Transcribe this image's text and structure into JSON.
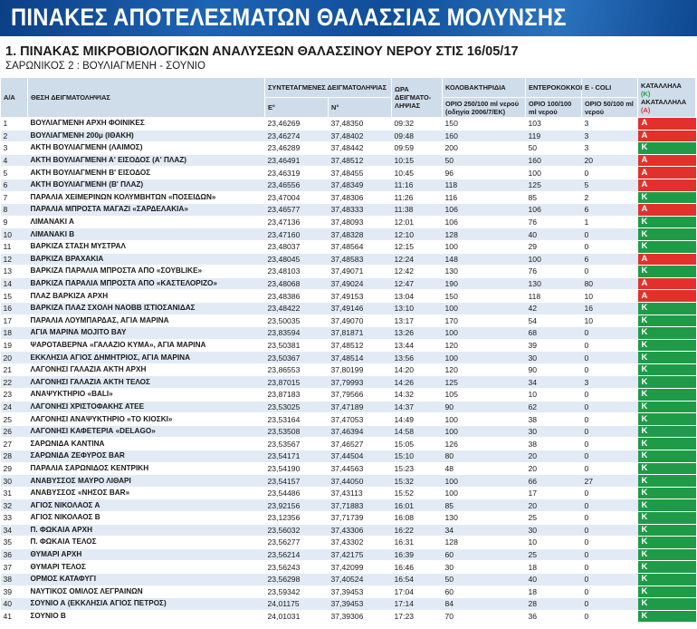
{
  "banner": "ΠΙΝΑΚΕΣ ΑΠΟΤΕΛΕΣΜΑΤΩΝ ΘΑΛΑΣΣΙΑΣ ΜΟΛΥΝΣΗΣ",
  "title": "1. ΠΙΝΑΚΑΣ ΜΙΚΡΟΒΙΟΛΟΓΙΚΩΝ ΑΝΑΛΥΣΕΩΝ ΘΑΛΑΣΣΙΝΟΥ ΝΕΡΟΥ ΣΤΙΣ 16/05/17",
  "subtitle": "ΣΑΡΩΝΙΚΟΣ 2 : ΒΟΥΛΙΑΓΜΕΝΗ - ΣΟΥΝΙΟ",
  "table": {
    "headers": {
      "aa": "Α/Α",
      "location": "ΘΕΣΗ ΔΕΙΓΜΑΤΟΛΗΨΙΑΣ",
      "coords": "ΣΥΝΤΕΤΑΓΜΕΝΕΣ ΔΕΙΓΜΑΤΟΛΗΨΙΑΣ",
      "e": "Ε°",
      "n": "Ν°",
      "time": "ΩΡΑ ΔΕΙΓΜΑΤΟ-ΛΗΨΙΑΣ",
      "coliform": "ΚΟΛΟΒΑΚΤΗΡΙΔΙΑ",
      "coliform_limit": "ΟΡΙΟ 250/100 ml νερού (οδηγία 2006/7/ΕΚ)",
      "entero": "ΕΝΤΕΡΟΚΟΚΚΟΙ",
      "entero_limit": "ΟΡΙΟ 100/100 ml νερού",
      "ecoli": "E - COLI",
      "ecoli_limit": "ΟΡΙΟ 50/100 ml νερού",
      "suitable": "ΚΑΤΑΛΛΗΛΑ",
      "suitable_code": "(Κ)",
      "unsuitable": "ΑΚΑΤΑΛΛΗΛΑ",
      "unsuitable_code": "(Α)"
    },
    "rows": [
      [
        1,
        "ΒΟΥΛΙΑΓΜΕΝΗ ΑΡΧΗ ΦΟΙΝΙΚΕΣ",
        "23,46269",
        "37,48350",
        "09:32",
        150,
        103,
        3,
        "Α"
      ],
      [
        2,
        "ΒΟΥΛΙΑΓΜΕΝΗ 200μ (ΙΘΑΚΗ)",
        "23,46274",
        "37,48402",
        "09:48",
        160,
        119,
        3,
        "Α"
      ],
      [
        3,
        "ΑΚΤΗ ΒΟΥΛΙΑΓΜΕΝΗ (ΛΑΙΜΟΣ)",
        "23,46289",
        "37,48442",
        "09:59",
        200,
        50,
        3,
        "Κ"
      ],
      [
        4,
        "ΑΚΤΗ ΒΟΥΛΙΑΓΜΕΝΗ Α' ΕΙΣΟΔΟΣ (Α' ΠΛΑΖ)",
        "23,46491",
        "37,48512",
        "10:15",
        50,
        160,
        20,
        "Α"
      ],
      [
        5,
        "ΑΚΤΗ ΒΟΥΛΙΑΓΜΕΝΗ Β' ΕΙΣΟΔΟΣ",
        "23,46319",
        "37,48455",
        "10:45",
        96,
        100,
        0,
        "Α"
      ],
      [
        6,
        "ΑΚΤΗ ΒΟΥΛΙΑΓΜΕΝΗ (Β' ΠΛΑΖ)",
        "23,46556",
        "37,48349",
        "11:16",
        118,
        125,
        5,
        "Α"
      ],
      [
        7,
        "ΠΑΡΑΛΙΑ ΧΕΙΜΕΡΙΝΩΝ ΚΟΛΥΜΒΗΤΩΝ «ΠΟΣΕΙΔΩΝ»",
        "23,47004",
        "37,48306",
        "11:26",
        116,
        85,
        2,
        "Κ"
      ],
      [
        8,
        "ΠΑΡΑΛΙΑ ΜΠΡΟΣΤΑ ΜΑΓΑΖΙ «ΣΑΡΔΕΛΑΚΙΑ»",
        "23,46577",
        "37,48333",
        "11:38",
        106,
        106,
        6,
        "Α"
      ],
      [
        9,
        "ΛΙΜΑΝΑΚΙ Α",
        "23,47136",
        "37,48093",
        "12:01",
        106,
        76,
        1,
        "Κ"
      ],
      [
        10,
        "ΛΙΜΑΝΑΚΙ Β",
        "23,47160",
        "37,48328",
        "12:10",
        128,
        40,
        0,
        "Κ"
      ],
      [
        11,
        "ΒΑΡΚΙΖΑ ΣΤΑΣΗ ΜΥΣΤΡΑΛ",
        "23,48037",
        "37,48564",
        "12:15",
        100,
        29,
        0,
        "Κ"
      ],
      [
        12,
        "ΒΑΡΚΙΖΑ ΒΡΑΧΑΚΙΑ",
        "23,48045",
        "37,48583",
        "12:24",
        148,
        100,
        6,
        "Α"
      ],
      [
        13,
        "ΒΑΡΚΙΖΑ ΠΑΡΑΛΙΑ ΜΠΡΟΣΤΑ ΑΠΟ «ΣΟΥΒLIKE»",
        "23,48103",
        "37,49071",
        "12:42",
        130,
        76,
        0,
        "Κ"
      ],
      [
        14,
        "ΒΑΡΚΙΖΑ ΠΑΡΑΛΙΑ ΜΠΡΟΣΤΑ ΑΠΟ «ΚΑΣΤΕΛΟΡΙΖΟ»",
        "23,48068",
        "37,49024",
        "12:47",
        190,
        130,
        80,
        "Α"
      ],
      [
        15,
        "ΠΛΑΖ ΒΑΡΚΙΖΑ ΑΡΧΗ",
        "23,48386",
        "37,49153",
        "13:04",
        150,
        118,
        10,
        "Α"
      ],
      [
        16,
        "ΒΑΡΚΙΖΑ ΠΛΑΖ ΣΧΟΛΗ ΝΑΟΒΒ ΙΣΤΙΟΣΑΝΙΔΑΣ",
        "23,48422",
        "37,49146",
        "13:10",
        100,
        42,
        16,
        "Κ"
      ],
      [
        17,
        "ΠΑΡΑΛΙΑ ΛΟΥΜΠΑΡΔΑΣ, ΑΓΙΑ ΜΑΡΙΝΑ",
        "23,50035",
        "37,49070",
        "13:17",
        170,
        54,
        10,
        "Κ"
      ],
      [
        18,
        "ΑΓΙΑ ΜΑΡΙΝΑ ΜΟJΙΤΟ ΒΑΥ",
        "23,83594",
        "37,81871",
        "13:26",
        100,
        68,
        0,
        "Κ"
      ],
      [
        19,
        "ΨΑΡΟΤΑΒΕΡΝΑ «ΓΑΛΑΖΙΟ ΚΥΜΑ», ΑΓΙΑ ΜΑΡΙΝΑ",
        "23,50381",
        "37,48512",
        "13:44",
        120,
        39,
        0,
        "Κ"
      ],
      [
        20,
        "ΕΚΚΛΗΣΙΑ ΑΓΙΟΣ ΔΗΜΗΤΡΙΟΣ, ΑΓΙΑ ΜΑΡΙΝΑ",
        "23,50367",
        "37,48514",
        "13:56",
        100,
        30,
        0,
        "Κ"
      ],
      [
        21,
        "ΛΑΓΟΝΗΣΙ ΓΑΛΑΖΙΑ ΑΚΤΗ ΑΡΧΗ",
        "23,86553",
        "37,80199",
        "14:20",
        120,
        90,
        0,
        "Κ"
      ],
      [
        22,
        "ΛΑΓΟΝΗΣΙ ΓΑΛΑΖΙΑ ΑΚΤΗ ΤΕΛΟΣ",
        "23,87015",
        "37,79993",
        "14:26",
        125,
        34,
        3,
        "Κ"
      ],
      [
        23,
        "ΑΝΑΨΥΚΤΗΡΙΟ «BALI»",
        "23,87183",
        "37,79566",
        "14:32",
        105,
        10,
        0,
        "Κ"
      ],
      [
        24,
        "ΛΑΓΟΝΗΣΙ ΧΡΙΣΤΟΦΑΚΗΣ ΑΤΕΕ",
        "23,53025",
        "37,47189",
        "14:37",
        90,
        62,
        0,
        "Κ"
      ],
      [
        25,
        "ΛΑΓΟΝΗΣΙ ΑΝΑΨΥΚΤΗΡΙΟ «ΤΟ ΚΙΟΣΚΙ»",
        "23,53164",
        "37,47053",
        "14:49",
        100,
        38,
        0,
        "Κ"
      ],
      [
        26,
        "ΛΑΓΟΝΗΣΙ ΚΑΦΕΤΕΡΙΑ «DELAGO»",
        "23,53508",
        "37,46394",
        "14:58",
        100,
        30,
        0,
        "Κ"
      ],
      [
        27,
        "ΣΑΡΩΝΙΔΑ ΚΑΝΤΙΝΑ",
        "23,53567",
        "37,46527",
        "15:05",
        126,
        38,
        0,
        "Κ"
      ],
      [
        28,
        "ΣΑΡΩΝΙΔΑ ΖΕΦΥΡΟΣ BAR",
        "23,54171",
        "37,44504",
        "15:10",
        80,
        20,
        0,
        "Κ"
      ],
      [
        29,
        "ΠΑΡΑΛΙΑ ΣΑΡΩΝΙΔΟΣ ΚΕΝΤΡΙΚΗ",
        "23,54190",
        "37,44563",
        "15:23",
        48,
        20,
        0,
        "Κ"
      ],
      [
        30,
        "ΑΝΑΒΥΣΣΟΣ ΜΑΥΡΟ ΛΙΘΑΡΙ",
        "23,54157",
        "37,44050",
        "15:32",
        100,
        66,
        27,
        "Κ"
      ],
      [
        31,
        "ΑΝΑΒΥΣΣΟΣ «ΝΗΣΟΣ BAR»",
        "23,54486",
        "37,43113",
        "15:52",
        100,
        17,
        0,
        "Κ"
      ],
      [
        32,
        "ΑΓΙΟΣ ΝΙΚΟΛΑΟΣ Α",
        "23,92156",
        "37,71883",
        "16:01",
        85,
        20,
        0,
        "Κ"
      ],
      [
        33,
        "ΑΓΙΟΣ ΝΙΚΟΛΑΟΣ Β",
        "23,12356",
        "37,71739",
        "16:08",
        130,
        25,
        0,
        "Κ"
      ],
      [
        34,
        "Π. ΦΩΚΑΙΑ ΑΡΧΗ",
        "23,56032",
        "37,43306",
        "16:22",
        34,
        30,
        0,
        "Κ"
      ],
      [
        35,
        "Π. ΦΩΚΑΙΑ ΤΕΛΟΣ",
        "23,56277",
        "37,43302",
        "16:31",
        128,
        10,
        0,
        "Κ"
      ],
      [
        36,
        "ΘΥΜΑΡΙ ΑΡΧΗ",
        "23,56214",
        "37,42175",
        "16:39",
        60,
        25,
        0,
        "Κ"
      ],
      [
        37,
        "ΘΥΜΑΡΙ ΤΕΛΟΣ",
        "23,56243",
        "37,42099",
        "16:46",
        30,
        18,
        0,
        "Κ"
      ],
      [
        38,
        "ΟΡΜΟΣ ΚΑΤΑΦΥΓΙ",
        "23,56298",
        "37,40524",
        "16:54",
        50,
        40,
        0,
        "Κ"
      ],
      [
        39,
        "ΝΑΥΤΙΚΟΣ ΟΜΙΛΟΣ ΛΕΓΡΑΙΝΩΝ",
        "23,59342",
        "37,39453",
        "17:04",
        60,
        18,
        0,
        "Κ"
      ],
      [
        40,
        "ΣΟΥΝΙΟ Α (ΕΚΚΛΗΣΙΑ ΑΓΙΟΣ ΠΕΤΡΟΣ)",
        "24,01175",
        "37,39453",
        "17:14",
        84,
        28,
        0,
        "Κ"
      ],
      [
        41,
        "ΣΟΥΝΙΟ Β",
        "24,01031",
        "37,39306",
        "17:23",
        70,
        36,
        0,
        "Κ"
      ]
    ]
  },
  "verdict_colors": {
    "Α": "#e2312d",
    "Κ": "#1f9b48"
  }
}
